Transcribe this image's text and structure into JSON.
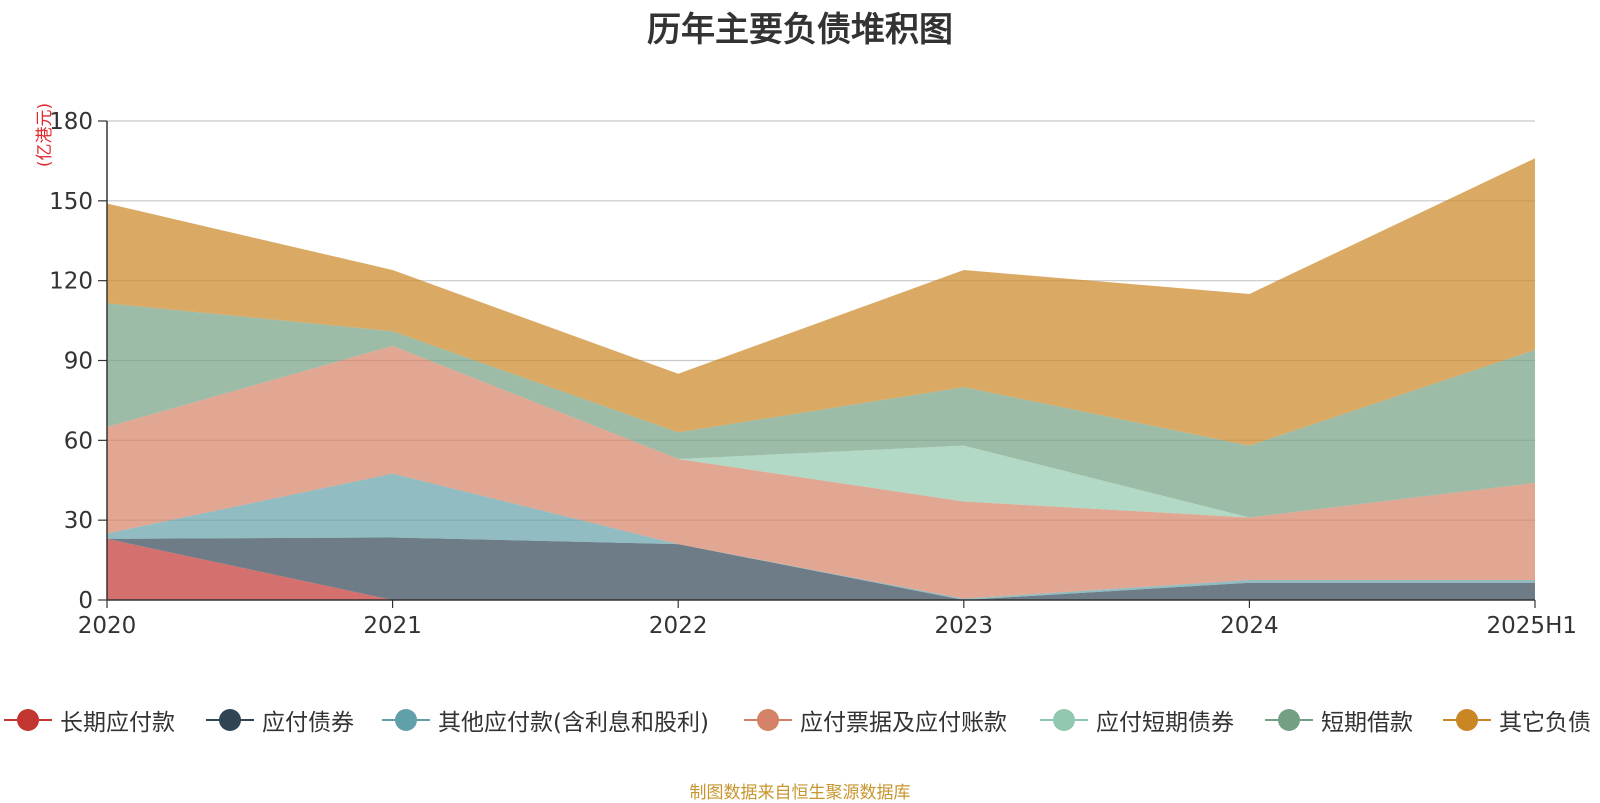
{
  "chart_data": {
    "type": "area",
    "stacked": true,
    "title": "历年主要负债堆积图",
    "ylabel": "(亿港元)",
    "xlabel": "",
    "categories": [
      "2020",
      "2021",
      "2022",
      "2023",
      "2024",
      "2025H1"
    ],
    "ylim": [
      0,
      180
    ],
    "yticks": [
      0,
      30,
      60,
      90,
      120,
      150,
      180
    ],
    "grid": true,
    "legend_position": "bottom",
    "series": [
      {
        "name": "长期应付款",
        "color": "#c23531",
        "values": [
          23,
          0,
          0,
          0,
          0,
          0
        ]
      },
      {
        "name": "应付债券",
        "color": "#2f4554",
        "values": [
          0,
          23.5,
          21,
          0,
          6.5,
          6.5
        ]
      },
      {
        "name": "其他应付款(含利息和股利)",
        "color": "#61a0a8",
        "values": [
          2,
          24,
          0,
          0.5,
          1,
          1
        ]
      },
      {
        "name": "应付票据及应付账款",
        "color": "#d48265",
        "values": [
          40,
          48,
          32,
          36.5,
          23.5,
          36.5
        ]
      },
      {
        "name": "应付短期债券",
        "color": "#91c7ae",
        "values": [
          0,
          0,
          0,
          21,
          0,
          0
        ]
      },
      {
        "name": "短期借款",
        "color": "#749f83",
        "values": [
          46.5,
          5.5,
          10,
          22,
          27,
          50
        ]
      },
      {
        "name": "其它负债",
        "color": "#ca8622",
        "values": [
          37.5,
          23,
          22,
          44,
          57,
          72
        ]
      }
    ]
  },
  "source_note": "制图数据来自恒生聚源数据库"
}
